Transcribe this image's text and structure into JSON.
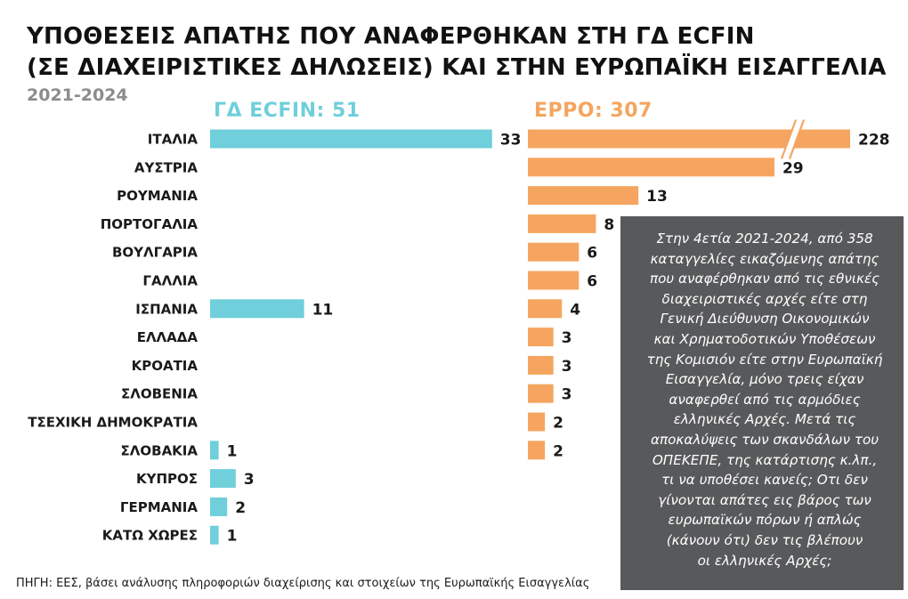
{
  "header": {
    "title_line1": "ΥΠΟΘΕΣΕΙΣ ΑΠΑΤΗΣ ΠΟΥ ΑΝΑΦΕΡΘΗΚΑΝ ΣΤΗ ΓΔ ECFIN",
    "title_line2": "(ΣΕ ΔΙΑΧΕΙΡΙΣΤΙΚΕΣ ΔΗΛΩΣΕΙΣ) ΚΑΙ ΣΤΗΝ ΕΥΡΩΠΑΪΚΗ ΕΙΣΑΓΓΕΛΙΑ",
    "subtitle": "2021-2024"
  },
  "chart_data": {
    "type": "bar",
    "orientation": "horizontal",
    "categories": [
      "ΙΤΑΛΙΑ",
      "ΑΥΣΤΡΙΑ",
      "ΡΟΥΜΑΝΙΑ",
      "ΠΟΡΤΟΓΑΛΙΑ",
      "ΒΟΥΛΓΑΡΙΑ",
      "ΓΑΛΛΙΑ",
      "ΙΣΠΑΝΙΑ",
      "ΕΛΛΑΔΑ",
      "ΚΡΟΑΤΙΑ",
      "ΣΛΟΒΕΝΙΑ",
      "ΤΣΕΧΙΚΗ ΔΗΜΟΚΡΑΤΙΑ",
      "ΣΛΟΒΑΚΙΑ",
      "ΚΥΠΡΟΣ",
      "ΓΕΡΜΑΝΙΑ",
      "ΚΑΤΩ ΧΩΡΕΣ"
    ],
    "series": [
      {
        "name": "ΓΔ ECFIN: 51",
        "color": "#6fcfda",
        "values": [
          33,
          null,
          null,
          null,
          null,
          null,
          11,
          null,
          null,
          null,
          null,
          1,
          3,
          2,
          1
        ]
      },
      {
        "name": "EPPO: 307",
        "color": "#f5a55f",
        "values": [
          228,
          29,
          13,
          8,
          6,
          6,
          4,
          3,
          3,
          3,
          2,
          2,
          null,
          null,
          null
        ],
        "axis_break": "ΙΤΑΛΙΑ"
      }
    ],
    "legend_placement": "top",
    "grid": false
  },
  "note": {
    "text": "Στην 4ετία 2021-2024, από 358\nκαταγγελίες εικαζόμενης απάτης\nπου αναφέρθηκαν από τις εθνικές\nδιαχειριστικές αρχές είτε στη\nΓενική Διεύθυνση Οικονομικών\nκαι Χρηματοδοτικών Υποθέσεων\nτης Κομισιόν είτε στην Ευρωπαϊκή\nΕισαγγελία, μόνο τρεις είχαν\nαναφερθεί από τις αρμόδιες\nελληνικές Αρχές. Μετά τις\nαποκαλύψεις των σκανδάλων του\nΟΠΕΚΕΠΕ, της κατάρτισης κ.λπ.,\nτι να υποθέσει κανείς; Οτι δεν\nγίνονται απάτες εις βάρος των\nευρωπαϊκών πόρων ή απλώς\n(κάνουν ότι) δεν τις βλέπουν\nοι ελληνικές Αρχές;"
  },
  "source": "ΠΗΓΗ: ΕΕΣ, βάσει ανάλυσης πληροφοριών διαχείρισης και στοιχείων της Ευρωπαϊκής Εισαγγελίας"
}
